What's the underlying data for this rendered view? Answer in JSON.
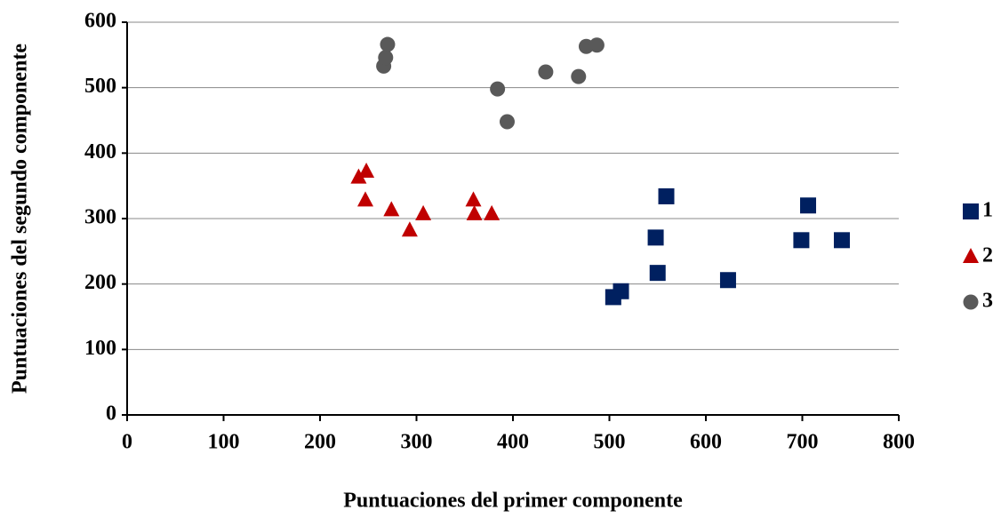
{
  "chart_data": {
    "type": "scatter",
    "x_label": "Puntuaciones del primer componente",
    "y_label": "Puntuaciones del segundo componente",
    "series": [
      {
        "name": "1",
        "color": "#002060",
        "marker": "square",
        "x": [
          504,
          512,
          548,
          550,
          559,
          623,
          699,
          706,
          741
        ],
        "values": [
          180,
          189,
          271,
          217,
          334,
          206,
          267,
          320,
          267
        ]
      },
      {
        "name": "2",
        "color": "#c00000",
        "marker": "triangle",
        "x": [
          240,
          248,
          247,
          274,
          293,
          307,
          359,
          360,
          378
        ],
        "values": [
          363,
          372,
          328,
          313,
          282,
          307,
          328,
          307,
          307
        ]
      },
      {
        "name": "3",
        "color": "#595959",
        "marker": "circle",
        "x": [
          266,
          268,
          270,
          384,
          394,
          434,
          468,
          476,
          487
        ],
        "values": [
          533,
          546,
          566,
          498,
          448,
          524,
          517,
          563,
          565
        ]
      }
    ],
    "xlim": [
      0,
      800
    ],
    "xticks": [
      0,
      100,
      200,
      300,
      400,
      500,
      600,
      700,
      800
    ],
    "ylim": [
      0,
      600
    ],
    "yticks": [
      0,
      100,
      200,
      300,
      400,
      500,
      600
    ],
    "grid": true,
    "legend": "right"
  }
}
